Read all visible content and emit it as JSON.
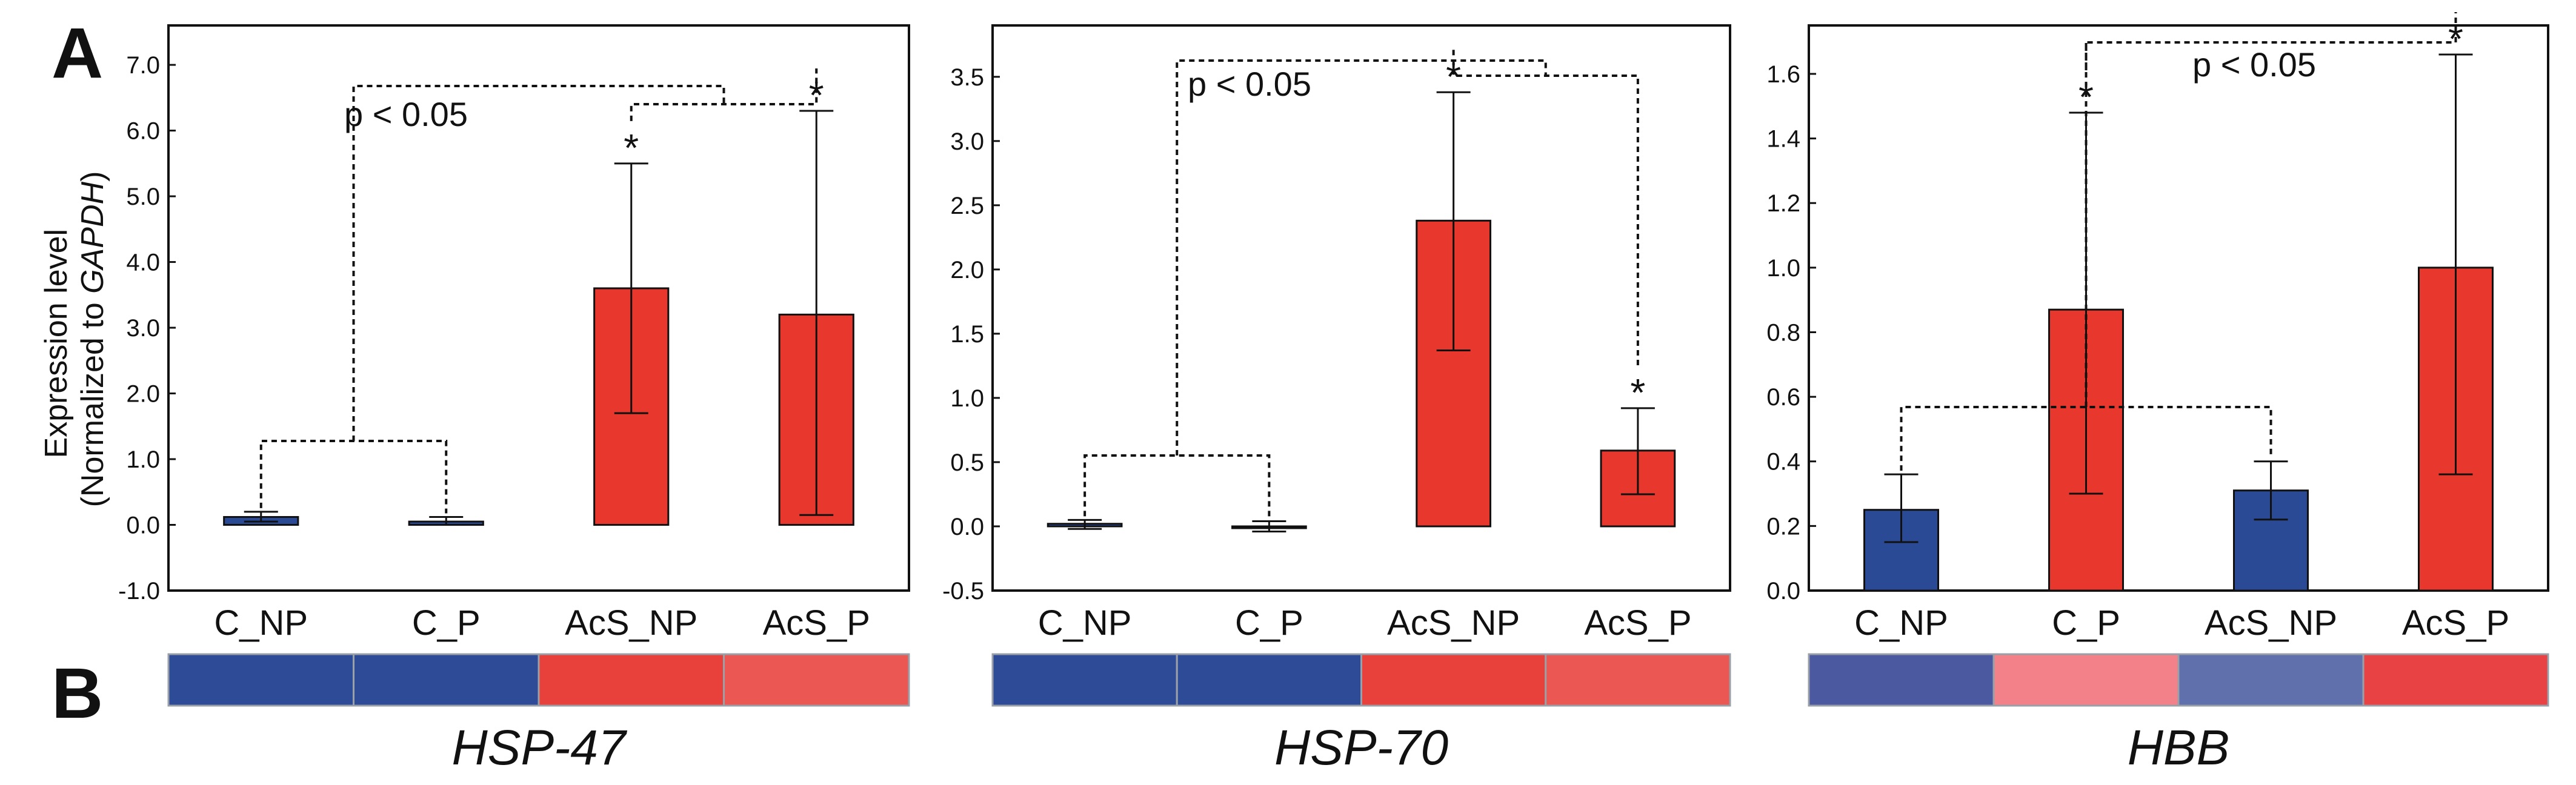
{
  "figure": {
    "panel_a": "A",
    "panel_b": "B",
    "ylabel_line1": "Expression level",
    "ylabel_line2_prefix": "(Normalized to ",
    "ylabel_line2_italic": "GAPDH",
    "ylabel_line2_suffix": ")"
  },
  "colors": {
    "control_bar": "#2b4a96",
    "treated_bar": "#e8382d"
  },
  "chart_data": [
    {
      "type": "bar",
      "gene": "HSP-47",
      "categories": [
        "C_NP",
        "C_P",
        "AcS_NP",
        "AcS_P"
      ],
      "values": [
        0.12,
        0.05,
        3.6,
        3.2
      ],
      "error_low": [
        0.05,
        0.0,
        1.7,
        0.15
      ],
      "error_high": [
        0.2,
        0.12,
        5.5,
        6.3
      ],
      "bar_colors": [
        "#2b4a96",
        "#2b4a96",
        "#e8382d",
        "#e8382d"
      ],
      "significant": [
        false,
        false,
        true,
        true
      ],
      "ylim": [
        -1.0,
        7.6
      ],
      "yticks": [
        -1.0,
        0.0,
        1.0,
        2.0,
        3.0,
        4.0,
        5.0,
        6.0,
        7.0
      ],
      "ytick_labels": [
        "-1.0",
        "0.0",
        "1.0",
        "2.0",
        "3.0",
        "4.0",
        "5.0",
        "6.0",
        "7.0"
      ],
      "annotation": "p < 0.05",
      "star_label": "*",
      "heatmap_colors": [
        "#2d4b97",
        "#2d4b97",
        "#e8403a",
        "#eb5752"
      ]
    },
    {
      "type": "bar",
      "gene": "HSP-70",
      "categories": [
        "C_NP",
        "C_P",
        "AcS_NP",
        "AcS_P"
      ],
      "values": [
        0.02,
        0.0,
        2.38,
        0.59
      ],
      "error_low": [
        -0.02,
        -0.04,
        1.37,
        0.25
      ],
      "error_high": [
        0.05,
        0.04,
        3.38,
        0.92
      ],
      "bar_colors": [
        "#2b4a96",
        "#2b4a96",
        "#e8382d",
        "#e8382d"
      ],
      "significant": [
        false,
        false,
        true,
        true
      ],
      "ylim": [
        -0.5,
        3.9
      ],
      "yticks": [
        -0.5,
        0.0,
        0.5,
        1.0,
        1.5,
        2.0,
        2.5,
        3.0,
        3.5
      ],
      "ytick_labels": [
        "-0.5",
        "0.0",
        "0.5",
        "1.0",
        "1.5",
        "2.0",
        "2.5",
        "3.0",
        "3.5"
      ],
      "annotation": "p < 0.05",
      "star_label": "*",
      "heatmap_colors": [
        "#2d4b97",
        "#2d4b97",
        "#e8403a",
        "#eb5752"
      ]
    },
    {
      "type": "bar",
      "gene": "HBB",
      "categories": [
        "C_NP",
        "C_P",
        "AcS_NP",
        "AcS_P"
      ],
      "values": [
        0.25,
        0.87,
        0.31,
        1.0
      ],
      "error_low": [
        0.15,
        0.3,
        0.22,
        0.36
      ],
      "error_high": [
        0.36,
        1.48,
        0.4,
        1.66
      ],
      "bar_colors": [
        "#2b4a96",
        "#e8382d",
        "#2b4a96",
        "#e8382d"
      ],
      "significant": [
        false,
        true,
        false,
        true
      ],
      "ylim": [
        0.0,
        1.75
      ],
      "yticks": [
        0.0,
        0.2,
        0.4,
        0.6,
        0.8,
        1.0,
        1.2,
        1.4,
        1.6
      ],
      "ytick_labels": [
        "0.0",
        "0.2",
        "0.4",
        "0.6",
        "0.8",
        "1.0",
        "1.2",
        "1.4",
        "1.6"
      ],
      "annotation": "p < 0.05",
      "star_label": "*",
      "heatmap_colors": [
        "#4a59a0",
        "#f2818a",
        "#5f70ad",
        "#e84244"
      ]
    }
  ]
}
